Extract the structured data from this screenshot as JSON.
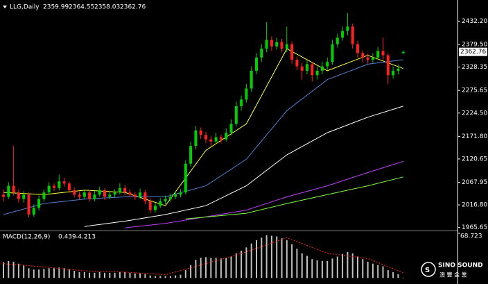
{
  "chart_data": [
    {
      "type": "candlestick",
      "title": "LLG,Daily",
      "up_color": "#00d000",
      "down_color": "#ff2020",
      "ylim": [
        1962,
        2480
      ],
      "yticks": [
        {
          "value": 2432.2,
          "label": "2432.20"
        },
        {
          "value": 2379.5,
          "label": "2379.50"
        },
        {
          "value": 2328.35,
          "label": "2328.35"
        },
        {
          "value": 2275.65,
          "label": "2275.65"
        },
        {
          "value": 2224.5,
          "label": "2224.50"
        },
        {
          "value": 2171.8,
          "label": "2171.80"
        },
        {
          "value": 2120.65,
          "label": "2120.65"
        },
        {
          "value": 2067.95,
          "label": "2067.95"
        },
        {
          "value": 2016.8,
          "label": "2016.80"
        },
        {
          "value": 1965.65,
          "label": "1965.65"
        }
      ],
      "ohlc": [
        [
          2040,
          2052,
          2025,
          2035
        ],
        [
          2035,
          2068,
          2030,
          2060
        ],
        [
          2060,
          2150,
          2038,
          2045
        ],
        [
          2045,
          2052,
          2022,
          2030
        ],
        [
          2030,
          2048,
          2022,
          2040
        ],
        [
          2040,
          2045,
          1988,
          1995
        ],
        [
          1995,
          2018,
          1990,
          2010
        ],
        [
          2010,
          2038,
          2004,
          2030
        ],
        [
          2030,
          2052,
          2024,
          2045
        ],
        [
          2045,
          2068,
          2040,
          2060
        ],
        [
          2060,
          2066,
          2048,
          2055
        ],
        [
          2055,
          2085,
          2050,
          2070
        ],
        [
          2070,
          2078,
          2058,
          2065
        ],
        [
          2065,
          2070,
          2044,
          2050
        ],
        [
          2050,
          2056,
          2034,
          2040
        ],
        [
          2040,
          2046,
          2028,
          2035
        ],
        [
          2035,
          2052,
          2030,
          2045
        ],
        [
          2045,
          2050,
          2024,
          2030
        ],
        [
          2030,
          2048,
          2025,
          2040
        ],
        [
          2040,
          2058,
          2035,
          2050
        ],
        [
          2050,
          2055,
          2028,
          2035
        ],
        [
          2035,
          2048,
          2030,
          2040
        ],
        [
          2040,
          2052,
          2034,
          2045
        ],
        [
          2045,
          2066,
          2040,
          2055
        ],
        [
          2055,
          2062,
          2038,
          2045
        ],
        [
          2045,
          2052,
          2034,
          2040
        ],
        [
          2040,
          2046,
          2028,
          2035
        ],
        [
          2035,
          2054,
          2030,
          2045
        ],
        [
          2045,
          2050,
          2018,
          2025
        ],
        [
          2025,
          2032,
          1998,
          2005
        ],
        [
          2005,
          2022,
          2000,
          2015
        ],
        [
          2015,
          2032,
          2010,
          2025
        ],
        [
          2025,
          2038,
          2018,
          2030
        ],
        [
          2030,
          2042,
          2024,
          2035
        ],
        [
          2035,
          2048,
          2030,
          2040
        ],
        [
          2040,
          2052,
          2034,
          2045
        ],
        [
          2045,
          2118,
          2040,
          2110
        ],
        [
          2110,
          2160,
          2104,
          2150
        ],
        [
          2150,
          2195,
          2142,
          2185
        ],
        [
          2185,
          2192,
          2166,
          2175
        ],
        [
          2175,
          2182,
          2156,
          2165
        ],
        [
          2165,
          2172,
          2150,
          2160
        ],
        [
          2160,
          2180,
          2154,
          2170
        ],
        [
          2170,
          2176,
          2156,
          2165
        ],
        [
          2165,
          2190,
          2160,
          2180
        ],
        [
          2180,
          2210,
          2174,
          2200
        ],
        [
          2200,
          2250,
          2194,
          2240
        ],
        [
          2240,
          2264,
          2230,
          2255
        ],
        [
          2255,
          2290,
          2248,
          2280
        ],
        [
          2280,
          2330,
          2272,
          2320
        ],
        [
          2320,
          2360,
          2312,
          2350
        ],
        [
          2350,
          2380,
          2340,
          2370
        ],
        [
          2370,
          2430,
          2362,
          2390
        ],
        [
          2390,
          2398,
          2365,
          2375
        ],
        [
          2375,
          2395,
          2368,
          2385
        ],
        [
          2385,
          2392,
          2362,
          2370
        ],
        [
          2370,
          2420,
          2362,
          2380
        ],
        [
          2380,
          2386,
          2336,
          2345
        ],
        [
          2345,
          2352,
          2322,
          2330
        ],
        [
          2330,
          2338,
          2300,
          2320
        ],
        [
          2320,
          2344,
          2312,
          2335
        ],
        [
          2335,
          2340,
          2296,
          2310
        ],
        [
          2310,
          2330,
          2300,
          2320
        ],
        [
          2320,
          2340,
          2312,
          2330
        ],
        [
          2330,
          2350,
          2322,
          2340
        ],
        [
          2340,
          2390,
          2334,
          2380
        ],
        [
          2380,
          2404,
          2372,
          2395
        ],
        [
          2395,
          2420,
          2388,
          2410
        ],
        [
          2410,
          2450,
          2400,
          2420
        ],
        [
          2420,
          2426,
          2370,
          2380
        ],
        [
          2380,
          2388,
          2350,
          2360
        ],
        [
          2360,
          2366,
          2340,
          2350
        ],
        [
          2350,
          2358,
          2336,
          2345
        ],
        [
          2345,
          2360,
          2338,
          2350
        ],
        [
          2350,
          2374,
          2344,
          2365
        ],
        [
          2365,
          2395,
          2345,
          2355
        ],
        [
          2355,
          2360,
          2290,
          2310
        ],
        [
          2310,
          2330,
          2302,
          2320
        ],
        [
          2320,
          2334,
          2312,
          2325
        ],
        [
          2359.99,
          2364.55,
          2358.03,
          2362.76
        ]
      ],
      "series": [
        {
          "color": "#ffff40",
          "x": [
            0,
            8,
            16,
            24,
            32,
            40,
            48,
            56,
            64,
            72,
            79
          ],
          "values": [
            2045,
            2040,
            2050,
            2045,
            2015,
            2140,
            2200,
            2370,
            2320,
            2355,
            2325
          ]
        },
        {
          "color": "#5080d0",
          "x": [
            0,
            8,
            16,
            24,
            32,
            40,
            48,
            56,
            64,
            72,
            79
          ],
          "values": [
            1995,
            2020,
            2030,
            2035,
            2035,
            2060,
            2120,
            2230,
            2300,
            2335,
            2345
          ]
        },
        {
          "color": "#ffffff",
          "x": [
            16,
            24,
            32,
            40,
            48,
            56,
            64,
            72,
            79
          ],
          "values": [
            1968,
            1980,
            1995,
            2015,
            2060,
            2130,
            2180,
            2215,
            2240
          ]
        },
        {
          "color": "#c040ff",
          "x": [
            24,
            32,
            40,
            48,
            56,
            64,
            72,
            79
          ],
          "values": [
            1965,
            1975,
            1990,
            2005,
            2035,
            2060,
            2090,
            2115
          ]
        },
        {
          "color": "#80ff40",
          "x": [
            36,
            48,
            56,
            64,
            72,
            79
          ],
          "values": [
            1985,
            1998,
            2020,
            2040,
            2060,
            2080
          ]
        }
      ]
    },
    {
      "type": "macd",
      "title": "MACD(12,26,9)",
      "current_values": [
        0.439,
        -4.213
      ],
      "bar_color": "#c0c0c0",
      "signal_color": "#ff2020",
      "ylim": [
        -5,
        68.723
      ],
      "yticks": [
        68.723
      ],
      "values": [
        24,
        26,
        25,
        22,
        20,
        15,
        13,
        13,
        14,
        15,
        15,
        16,
        15,
        13,
        11,
        9,
        9,
        8,
        8,
        9,
        8,
        8,
        8,
        9,
        9,
        8,
        7,
        7,
        6,
        4,
        3,
        3,
        3,
        3,
        4,
        5,
        12,
        20,
        28,
        31,
        32,
        31,
        31,
        30,
        31,
        33,
        38,
        42,
        47,
        53,
        58,
        62,
        66,
        65,
        64,
        61,
        58,
        52,
        45,
        38,
        34,
        29,
        27,
        26,
        26,
        30,
        33,
        37,
        40,
        38,
        33,
        29,
        25,
        22,
        20,
        18,
        12,
        9,
        6,
        0.439
      ],
      "signal": {
        "x": [
          0,
          8,
          16,
          24,
          32,
          40,
          48,
          56,
          64,
          72,
          79
        ],
        "values": [
          22,
          17,
          11,
          9,
          5,
          22,
          40,
          62,
          38,
          30,
          8
        ]
      }
    }
  ],
  "logo": {
    "name": "SINO SOUND",
    "subtitle": "澳 豐 金 業"
  }
}
